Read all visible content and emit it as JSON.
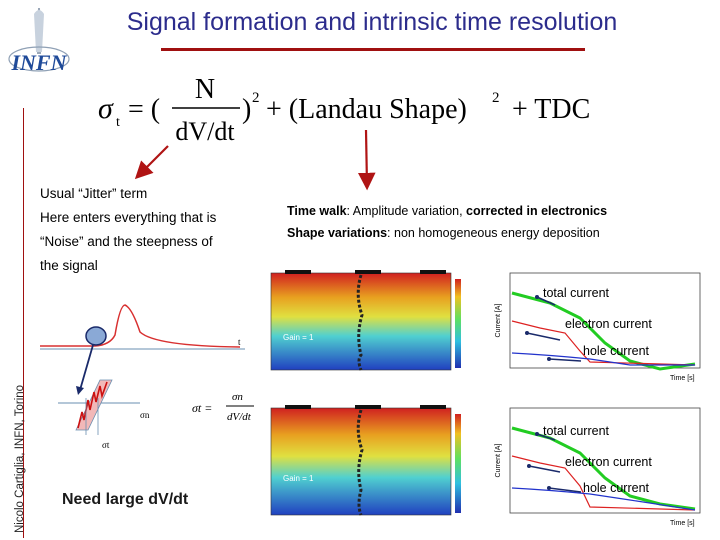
{
  "title": "Signal formation and intrinsic time resolution",
  "author_vertical": "Nicolo Cartiglia, INFN, Torino",
  "formula": {
    "sigma": "σ",
    "sub_t": "t",
    "equals": "= (",
    "numerator": "N",
    "denominator": "dV/dt",
    "close": ")",
    "sq1": "2",
    "plus_landau": "+ (Landau Shape)",
    "sq2": "2",
    "plus_tdc": "+ TDC"
  },
  "left_text": {
    "line1": "Usual “Jitter” term",
    "line2": "Here enters everything that is",
    "line3": "“Noise” and the steepness of",
    "line4": "the signal"
  },
  "right_text": {
    "time_walk_term": "Time walk",
    "time_walk_desc": ": Amplitude variation, ",
    "time_walk_bold": "corrected in electronics",
    "shape_term": "Shape variations",
    "shape_desc": ": non homogeneous energy deposition"
  },
  "sketch": {
    "sigma_n": "σn",
    "sigma_t": "σt",
    "eq_lhs": "σt =",
    "eq_num": "σn",
    "eq_den": "dV/dt",
    "axis_t": "t"
  },
  "need_label": "Need large dV/dt",
  "sim_panels": [
    {
      "gain_label": "Gain = 1",
      "total": "total current",
      "electron": "electron current",
      "hole": "hole current",
      "ylabel": "Current [A]",
      "xlabel": "Time [s]"
    },
    {
      "gain_label": "Gain = 1",
      "total": "total current",
      "electron": "electron current",
      "hole": "hole current",
      "ylabel": "Current [A]",
      "xlabel": "Time [s]"
    }
  ],
  "colors": {
    "title": "#2c2c8c",
    "accent_red": "#a01010",
    "total_curve": "#22cc22",
    "electron_curve": "#dd2222",
    "hole_curve": "#2233cc"
  },
  "logo_text": "INFN"
}
